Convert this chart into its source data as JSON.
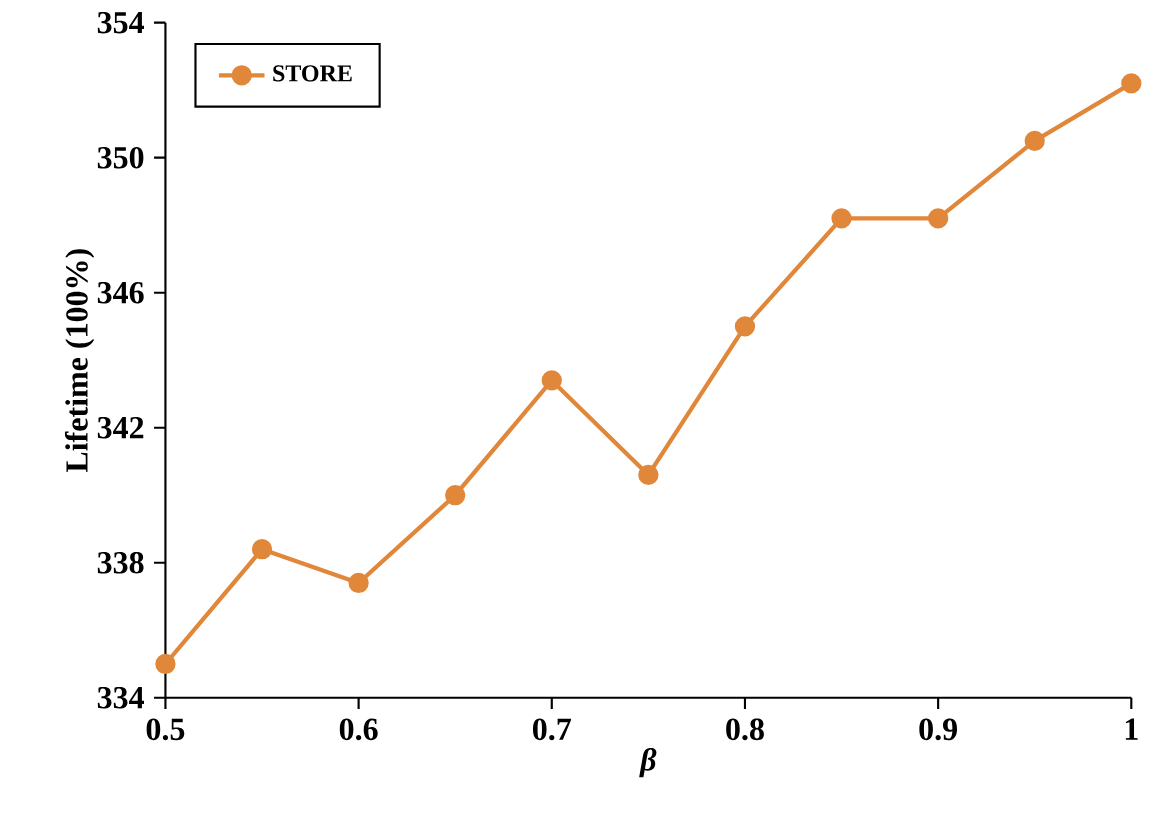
{
  "chart_data": {
    "type": "line",
    "xlabel": "β",
    "ylabel": "Lifetime (100%)",
    "x": [
      0.5,
      0.55,
      0.6,
      0.65,
      0.7,
      0.75,
      0.8,
      0.85,
      0.9,
      0.95,
      1.0
    ],
    "series": [
      {
        "name": "STORE",
        "color": "#e0873a",
        "values": [
          335.0,
          338.4,
          337.4,
          340.0,
          343.4,
          340.6,
          345.0,
          348.2,
          348.2,
          350.5,
          352.2
        ]
      }
    ],
    "xlim": [
      0.5,
      1.0
    ],
    "xticks": [
      0.5,
      0.6,
      0.7,
      0.8,
      0.9,
      1
    ],
    "ylim": [
      334,
      354
    ],
    "yticks": [
      334,
      338,
      342,
      346,
      350,
      354
    ],
    "grid": false,
    "legend": "top left",
    "marker": "circle",
    "line_style": "solid"
  }
}
